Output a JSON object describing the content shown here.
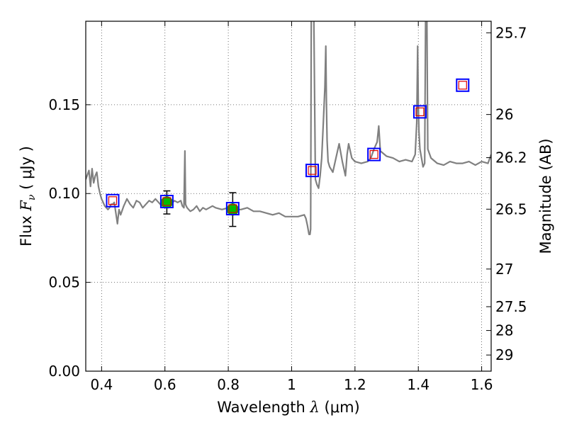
{
  "chart_data": {
    "type": "line",
    "title": "",
    "xlabel": "Wavelength",
    "xlabel_symbol": "λ",
    "xlabel_units": "(μm)",
    "ylabel": "Flux",
    "ylabel_symbol": "F",
    "ylabel_subscript": "ν",
    "ylabel_units": "( μJy )",
    "y2label": "Magnitude (AB)",
    "xlim": [
      0.35,
      1.63
    ],
    "ylim": [
      0.0,
      0.197
    ],
    "grid": true,
    "x_ticks": [
      0.4,
      0.6,
      0.8,
      1.0,
      1.2,
      1.4,
      1.6
    ],
    "x_tick_labels": [
      "0.4",
      "0.6",
      "0.8",
      "1",
      "1.2",
      "1.4",
      "1.6"
    ],
    "y_ticks": [
      0.0,
      0.05,
      0.1,
      0.15
    ],
    "y_tick_labels": [
      "0.00",
      "0.05",
      "0.10",
      "0.15"
    ],
    "y2_ticks": [
      {
        "label": "25.7",
        "flux": 0.1905
      },
      {
        "label": "26",
        "flux": 0.1445
      },
      {
        "label": "26.2",
        "flux": 0.1202
      },
      {
        "label": "26.5",
        "flux": 0.0912
      },
      {
        "label": "27",
        "flux": 0.0575
      },
      {
        "label": "27.5",
        "flux": 0.0363
      },
      {
        "label": "28",
        "flux": 0.0229
      },
      {
        "label": "29",
        "flux": 0.0091
      }
    ],
    "colors": {
      "spectrum": "#808080",
      "observed_fill": "#00bb00",
      "observed_edge": "#00aa00",
      "model_box": "#0000ff",
      "model_inner": "#dd0000",
      "error_bar": "#000000"
    },
    "series": [
      {
        "name": "model spectrum",
        "style": "line",
        "x": [
          0.35,
          0.36,
          0.365,
          0.37,
          0.375,
          0.38,
          0.385,
          0.39,
          0.395,
          0.4,
          0.405,
          0.41,
          0.415,
          0.42,
          0.425,
          0.43,
          0.435,
          0.44,
          0.445,
          0.45,
          0.455,
          0.46,
          0.47,
          0.48,
          0.49,
          0.5,
          0.51,
          0.52,
          0.53,
          0.54,
          0.55,
          0.56,
          0.57,
          0.58,
          0.59,
          0.6,
          0.61,
          0.62,
          0.63,
          0.64,
          0.65,
          0.655,
          0.66,
          0.663,
          0.665,
          0.667,
          0.67,
          0.68,
          0.69,
          0.7,
          0.71,
          0.72,
          0.73,
          0.74,
          0.75,
          0.76,
          0.78,
          0.8,
          0.82,
          0.84,
          0.86,
          0.88,
          0.9,
          0.92,
          0.94,
          0.96,
          0.98,
          1.0,
          1.02,
          1.04,
          1.045,
          1.05,
          1.055,
          1.058,
          1.06,
          1.062,
          1.064,
          1.066,
          1.068,
          1.07,
          1.075,
          1.08,
          1.085,
          1.09,
          1.095,
          1.1,
          1.105,
          1.108,
          1.11,
          1.112,
          1.115,
          1.12,
          1.13,
          1.14,
          1.15,
          1.16,
          1.17,
          1.175,
          1.18,
          1.19,
          1.2,
          1.22,
          1.24,
          1.25,
          1.26,
          1.27,
          1.275,
          1.28,
          1.3,
          1.32,
          1.34,
          1.36,
          1.38,
          1.39,
          1.395,
          1.398,
          1.4,
          1.402,
          1.405,
          1.41,
          1.415,
          1.42,
          1.423,
          1.425,
          1.427,
          1.43,
          1.44,
          1.46,
          1.48,
          1.5,
          1.52,
          1.54,
          1.56,
          1.58,
          1.6,
          1.62,
          1.63
        ],
        "y": [
          0.108,
          0.113,
          0.104,
          0.114,
          0.106,
          0.11,
          0.112,
          0.104,
          0.1,
          0.097,
          0.095,
          0.093,
          0.092,
          0.091,
          0.092,
          0.094,
          0.094,
          0.095,
          0.089,
          0.083,
          0.091,
          0.088,
          0.093,
          0.097,
          0.094,
          0.092,
          0.096,
          0.095,
          0.092,
          0.094,
          0.096,
          0.095,
          0.097,
          0.095,
          0.093,
          0.094,
          0.092,
          0.094,
          0.096,
          0.095,
          0.096,
          0.093,
          0.092,
          0.124,
          0.094,
          0.093,
          0.092,
          0.09,
          0.091,
          0.093,
          0.09,
          0.092,
          0.091,
          0.092,
          0.093,
          0.092,
          0.091,
          0.092,
          0.091,
          0.091,
          0.092,
          0.09,
          0.09,
          0.089,
          0.088,
          0.089,
          0.087,
          0.087,
          0.087,
          0.088,
          0.086,
          0.082,
          0.077,
          0.077,
          0.08,
          0.2,
          0.2,
          0.2,
          0.2,
          0.2,
          0.108,
          0.105,
          0.103,
          0.11,
          0.12,
          0.14,
          0.16,
          0.183,
          0.15,
          0.13,
          0.118,
          0.115,
          0.112,
          0.12,
          0.128,
          0.118,
          0.11,
          0.122,
          0.128,
          0.12,
          0.118,
          0.117,
          0.118,
          0.12,
          0.125,
          0.129,
          0.138,
          0.124,
          0.121,
          0.12,
          0.118,
          0.119,
          0.118,
          0.122,
          0.14,
          0.183,
          0.15,
          0.135,
          0.125,
          0.12,
          0.115,
          0.117,
          0.2,
          0.2,
          0.2,
          0.125,
          0.12,
          0.117,
          0.116,
          0.118,
          0.117,
          0.117,
          0.118,
          0.116,
          0.118,
          0.117,
          0.122
        ]
      },
      {
        "name": "observed photometry",
        "style": "marker",
        "marker": "circle",
        "x": [
          0.606,
          0.814
        ],
        "y": [
          0.095,
          0.091
        ],
        "err": [
          0.0065,
          0.0095
        ]
      },
      {
        "name": "model photometry",
        "style": "marker",
        "marker": "square",
        "x": [
          0.435,
          0.606,
          0.814,
          1.065,
          1.26,
          1.405,
          1.54
        ],
        "y": [
          0.096,
          0.0955,
          0.0915,
          0.113,
          0.122,
          0.146,
          0.161
        ]
      }
    ]
  }
}
